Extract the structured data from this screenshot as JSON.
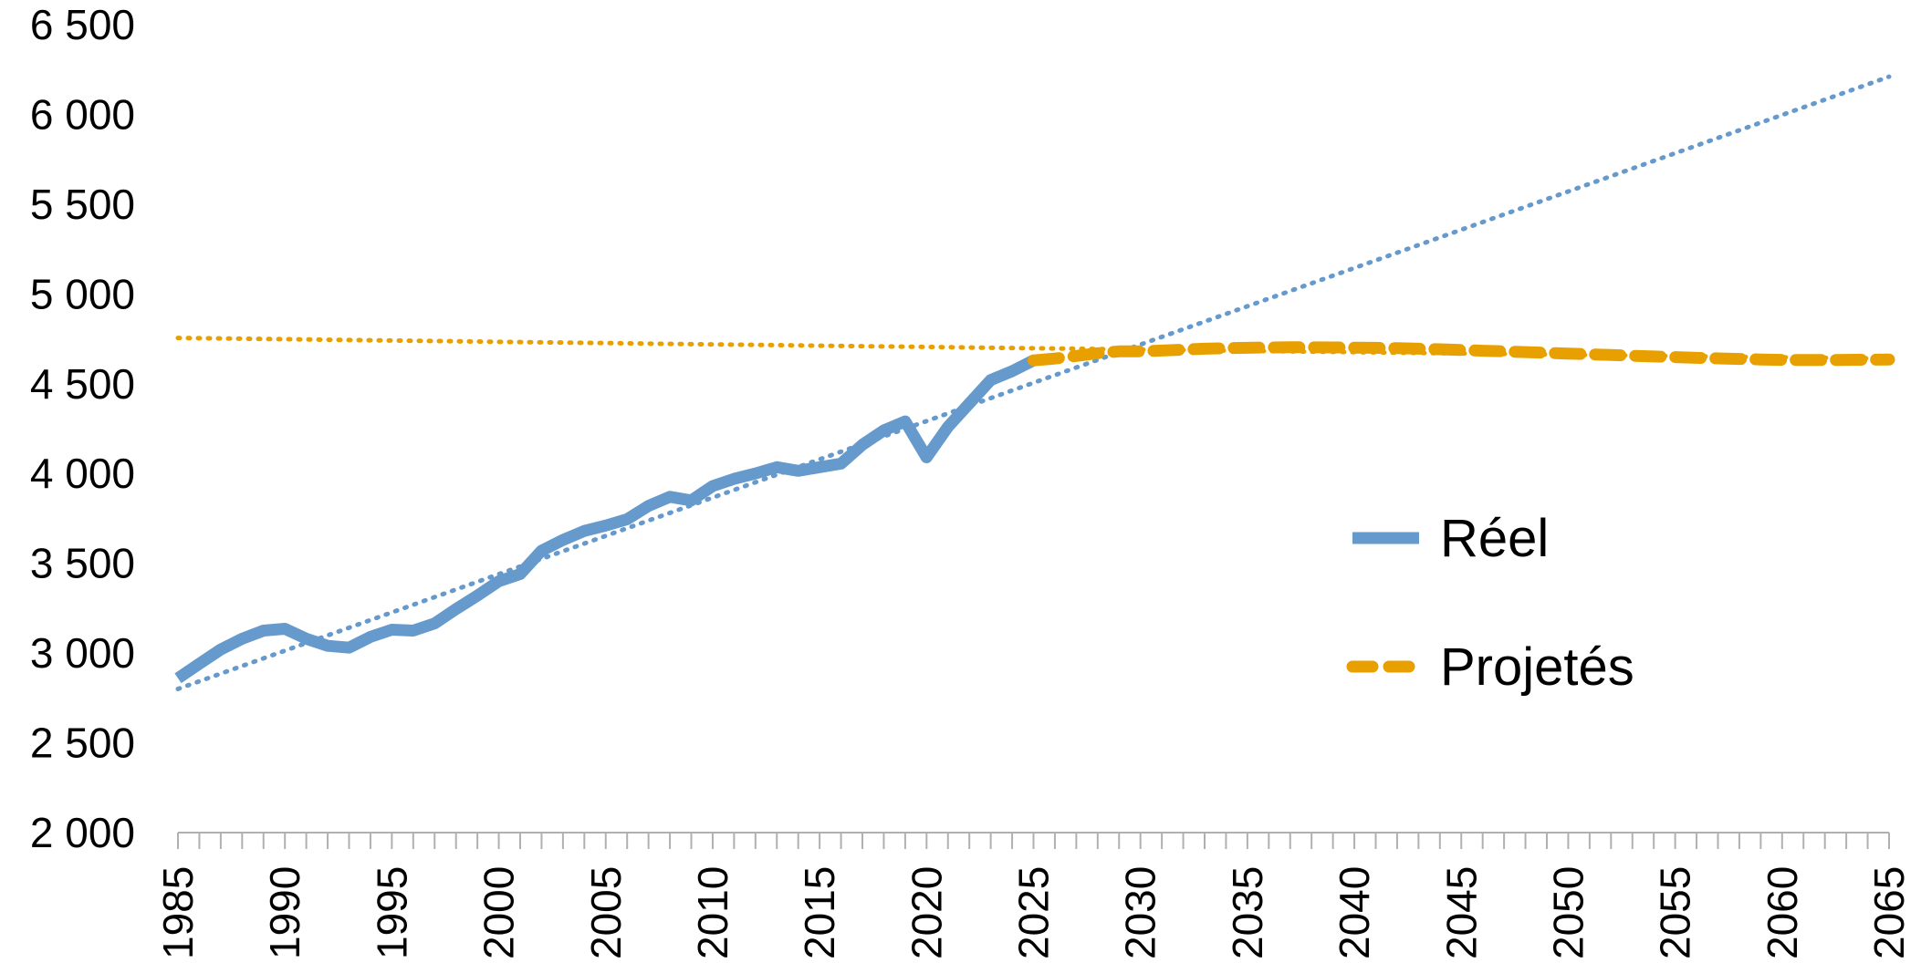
{
  "chart_data": {
    "type": "line",
    "title": "",
    "xlabel": "",
    "ylabel": "",
    "xlim": [
      1985,
      2065
    ],
    "ylim": [
      2000,
      6500
    ],
    "y_ticks": [
      {
        "value": 2000,
        "label": "2 000"
      },
      {
        "value": 2500,
        "label": "2 500"
      },
      {
        "value": 3000,
        "label": "3 000"
      },
      {
        "value": 3500,
        "label": "3 500"
      },
      {
        "value": 4000,
        "label": "4 000"
      },
      {
        "value": 4500,
        "label": "4 500"
      },
      {
        "value": 5000,
        "label": "5 000"
      },
      {
        "value": 5500,
        "label": "5 500"
      },
      {
        "value": 6000,
        "label": "6 000"
      },
      {
        "value": 6500,
        "label": "6 500"
      }
    ],
    "x_ticks": [
      {
        "value": 1985,
        "label": "1985"
      },
      {
        "value": 1990,
        "label": "1990"
      },
      {
        "value": 1995,
        "label": "1995"
      },
      {
        "value": 2000,
        "label": "2000"
      },
      {
        "value": 2005,
        "label": "2005"
      },
      {
        "value": 2010,
        "label": "2010"
      },
      {
        "value": 2015,
        "label": "2015"
      },
      {
        "value": 2020,
        "label": "2020"
      },
      {
        "value": 2025,
        "label": "2025"
      },
      {
        "value": 2030,
        "label": "2030"
      },
      {
        "value": 2035,
        "label": "2035"
      },
      {
        "value": 2040,
        "label": "2040"
      },
      {
        "value": 2045,
        "label": "2045"
      },
      {
        "value": 2050,
        "label": "2050"
      },
      {
        "value": 2055,
        "label": "2055"
      },
      {
        "value": 2060,
        "label": "2060"
      },
      {
        "value": 2065,
        "label": "2065"
      }
    ],
    "legend_position": "right",
    "series": [
      {
        "name": "Réel",
        "color": "#6699cc",
        "style": "solid",
        "x": [
          1985,
          1986,
          1987,
          1988,
          1989,
          1990,
          1991,
          1992,
          1993,
          1994,
          1995,
          1996,
          1997,
          1998,
          1999,
          2000,
          2001,
          2002,
          2003,
          2004,
          2005,
          2006,
          2007,
          2008,
          2009,
          2010,
          2011,
          2012,
          2013,
          2014,
          2015,
          2016,
          2017,
          2018,
          2019,
          2020,
          2021,
          2022,
          2023,
          2024,
          2025
        ],
        "values": [
          2860,
          2940,
          3020,
          3080,
          3125,
          3135,
          3080,
          3040,
          3030,
          3090,
          3130,
          3125,
          3165,
          3245,
          3320,
          3400,
          3440,
          3570,
          3630,
          3680,
          3710,
          3745,
          3820,
          3870,
          3850,
          3930,
          3970,
          4000,
          4035,
          4015,
          4035,
          4055,
          4160,
          4240,
          4290,
          4090,
          4260,
          4390,
          4520,
          4570,
          4630
        ]
      },
      {
        "name": "Projetés",
        "color": "#e8a000",
        "style": "dashed",
        "x": [
          2025,
          2026,
          2027,
          2028,
          2029,
          2030,
          2031,
          2032,
          2033,
          2034,
          2035,
          2036,
          2037,
          2038,
          2039,
          2040,
          2041,
          2042,
          2043,
          2044,
          2045,
          2046,
          2047,
          2048,
          2049,
          2050,
          2051,
          2052,
          2053,
          2054,
          2055,
          2056,
          2057,
          2058,
          2059,
          2060,
          2061,
          2062,
          2063,
          2064,
          2065
        ],
        "values": [
          4630,
          4640,
          4655,
          4670,
          4680,
          4680,
          4685,
          4690,
          4695,
          4698,
          4700,
          4702,
          4703,
          4703,
          4702,
          4701,
          4700,
          4698,
          4695,
          4692,
          4688,
          4684,
          4680,
          4676,
          4672,
          4668,
          4664,
          4660,
          4656,
          4652,
          4648,
          4644,
          4641,
          4638,
          4635,
          4633,
          4632,
          4632,
          4633,
          4634,
          4635
        ]
      }
    ],
    "trendlines": [
      {
        "of": "Réel",
        "color": "#6699cc",
        "style": "dotted",
        "x": [
          1985,
          2065
        ],
        "values": [
          2800,
          6210
        ]
      },
      {
        "of": "Projetés",
        "color": "#e8a000",
        "style": "dotted",
        "x": [
          1985,
          2065
        ],
        "values": [
          4755,
          4640
        ]
      }
    ]
  }
}
